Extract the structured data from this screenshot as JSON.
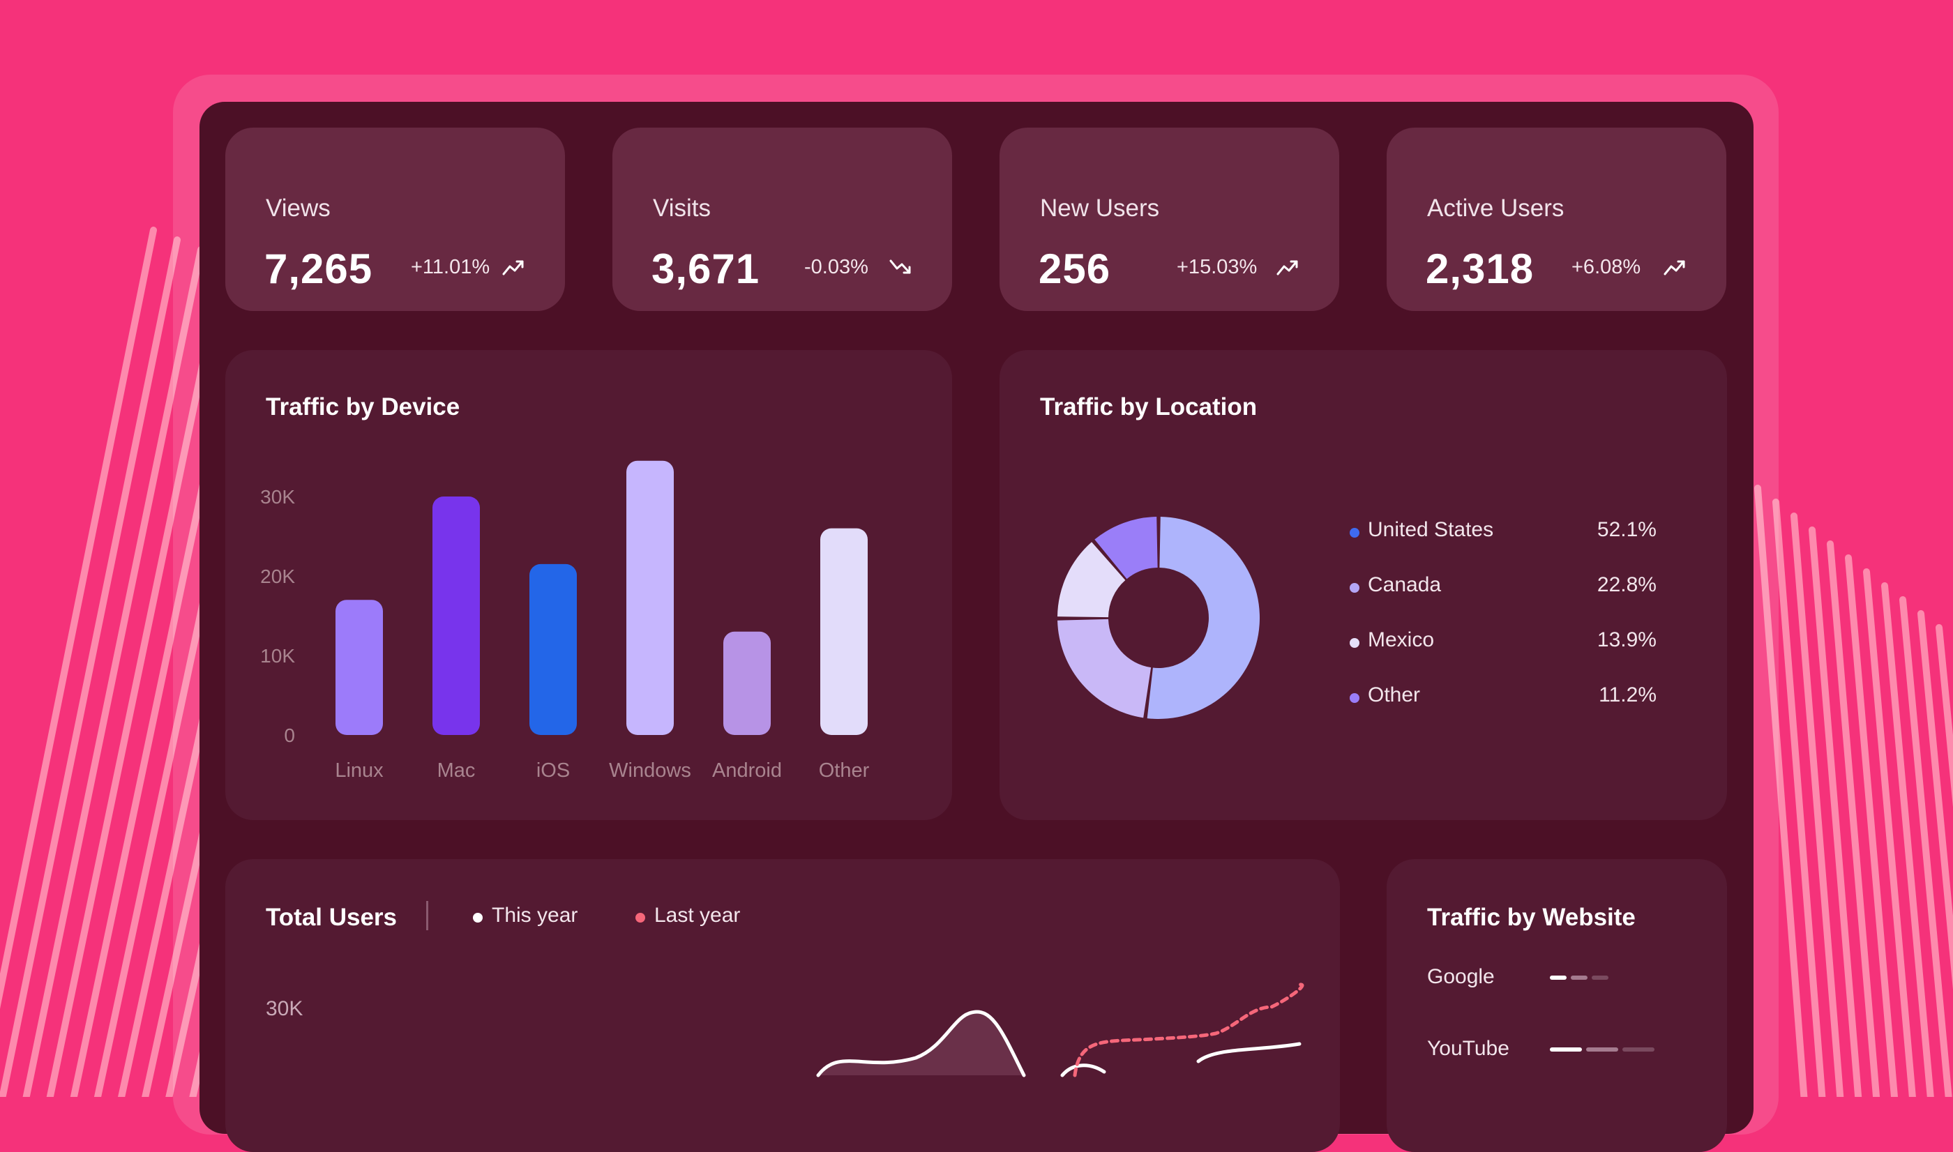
{
  "colors": {
    "page_bg": "#f5327a",
    "dashboard_bg": "#4c1026",
    "stat_card_bg": "#682942",
    "panel_bg": "#541a32",
    "this_year_line": "#ffffff",
    "last_year_line": "#f5677a"
  },
  "stats": [
    {
      "label": "Views",
      "value": "7,265",
      "change": "+11.01%",
      "trend": "up",
      "icon": "trend-up-icon"
    },
    {
      "label": "Visits",
      "value": "3,671",
      "change": "-0.03%",
      "trend": "down",
      "icon": "trend-down-icon"
    },
    {
      "label": "New Users",
      "value": "256",
      "change": "+15.03%",
      "trend": "up",
      "icon": "trend-up-icon"
    },
    {
      "label": "Active Users",
      "value": "2,318",
      "change": "+6.08%",
      "trend": "up",
      "icon": "trend-up-icon"
    }
  ],
  "device": {
    "title": "Traffic by Device"
  },
  "location": {
    "title": "Traffic by Location"
  },
  "total_users": {
    "title": "Total Users",
    "legend_this_year": "This year",
    "legend_last_year": "Last year",
    "ytick_top": "30K"
  },
  "website": {
    "title": "Traffic by Website",
    "items": [
      {
        "name": "Google"
      },
      {
        "name": "YouTube"
      }
    ]
  },
  "chart_data": [
    {
      "type": "bar",
      "title": "Traffic by Device",
      "categories": [
        "Linux",
        "Mac",
        "iOS",
        "Windows",
        "Android",
        "Other"
      ],
      "values": [
        17000,
        30000,
        21500,
        34500,
        13000,
        26000
      ],
      "colors": [
        "#9c7bfa",
        "#7834ec",
        "#2366e8",
        "#c6b6fe",
        "#b793e6",
        "#e2dcfa"
      ],
      "yticks": [
        "0",
        "10K",
        "20K",
        "30K"
      ],
      "ylim": [
        0,
        35000
      ],
      "grid": false
    },
    {
      "type": "pie",
      "title": "Traffic by Location",
      "labels": [
        "United States",
        "Canada",
        "Mexico",
        "Other"
      ],
      "values": [
        52.1,
        22.8,
        13.9,
        11.2
      ],
      "display": [
        "52.1%",
        "22.8%",
        "13.9%",
        "11.2%"
      ],
      "colors": [
        "#aeb4fc",
        "#c9b8f7",
        "#e4ddfa",
        "#9a7ef8"
      ],
      "legend_position": "right"
    }
  ]
}
